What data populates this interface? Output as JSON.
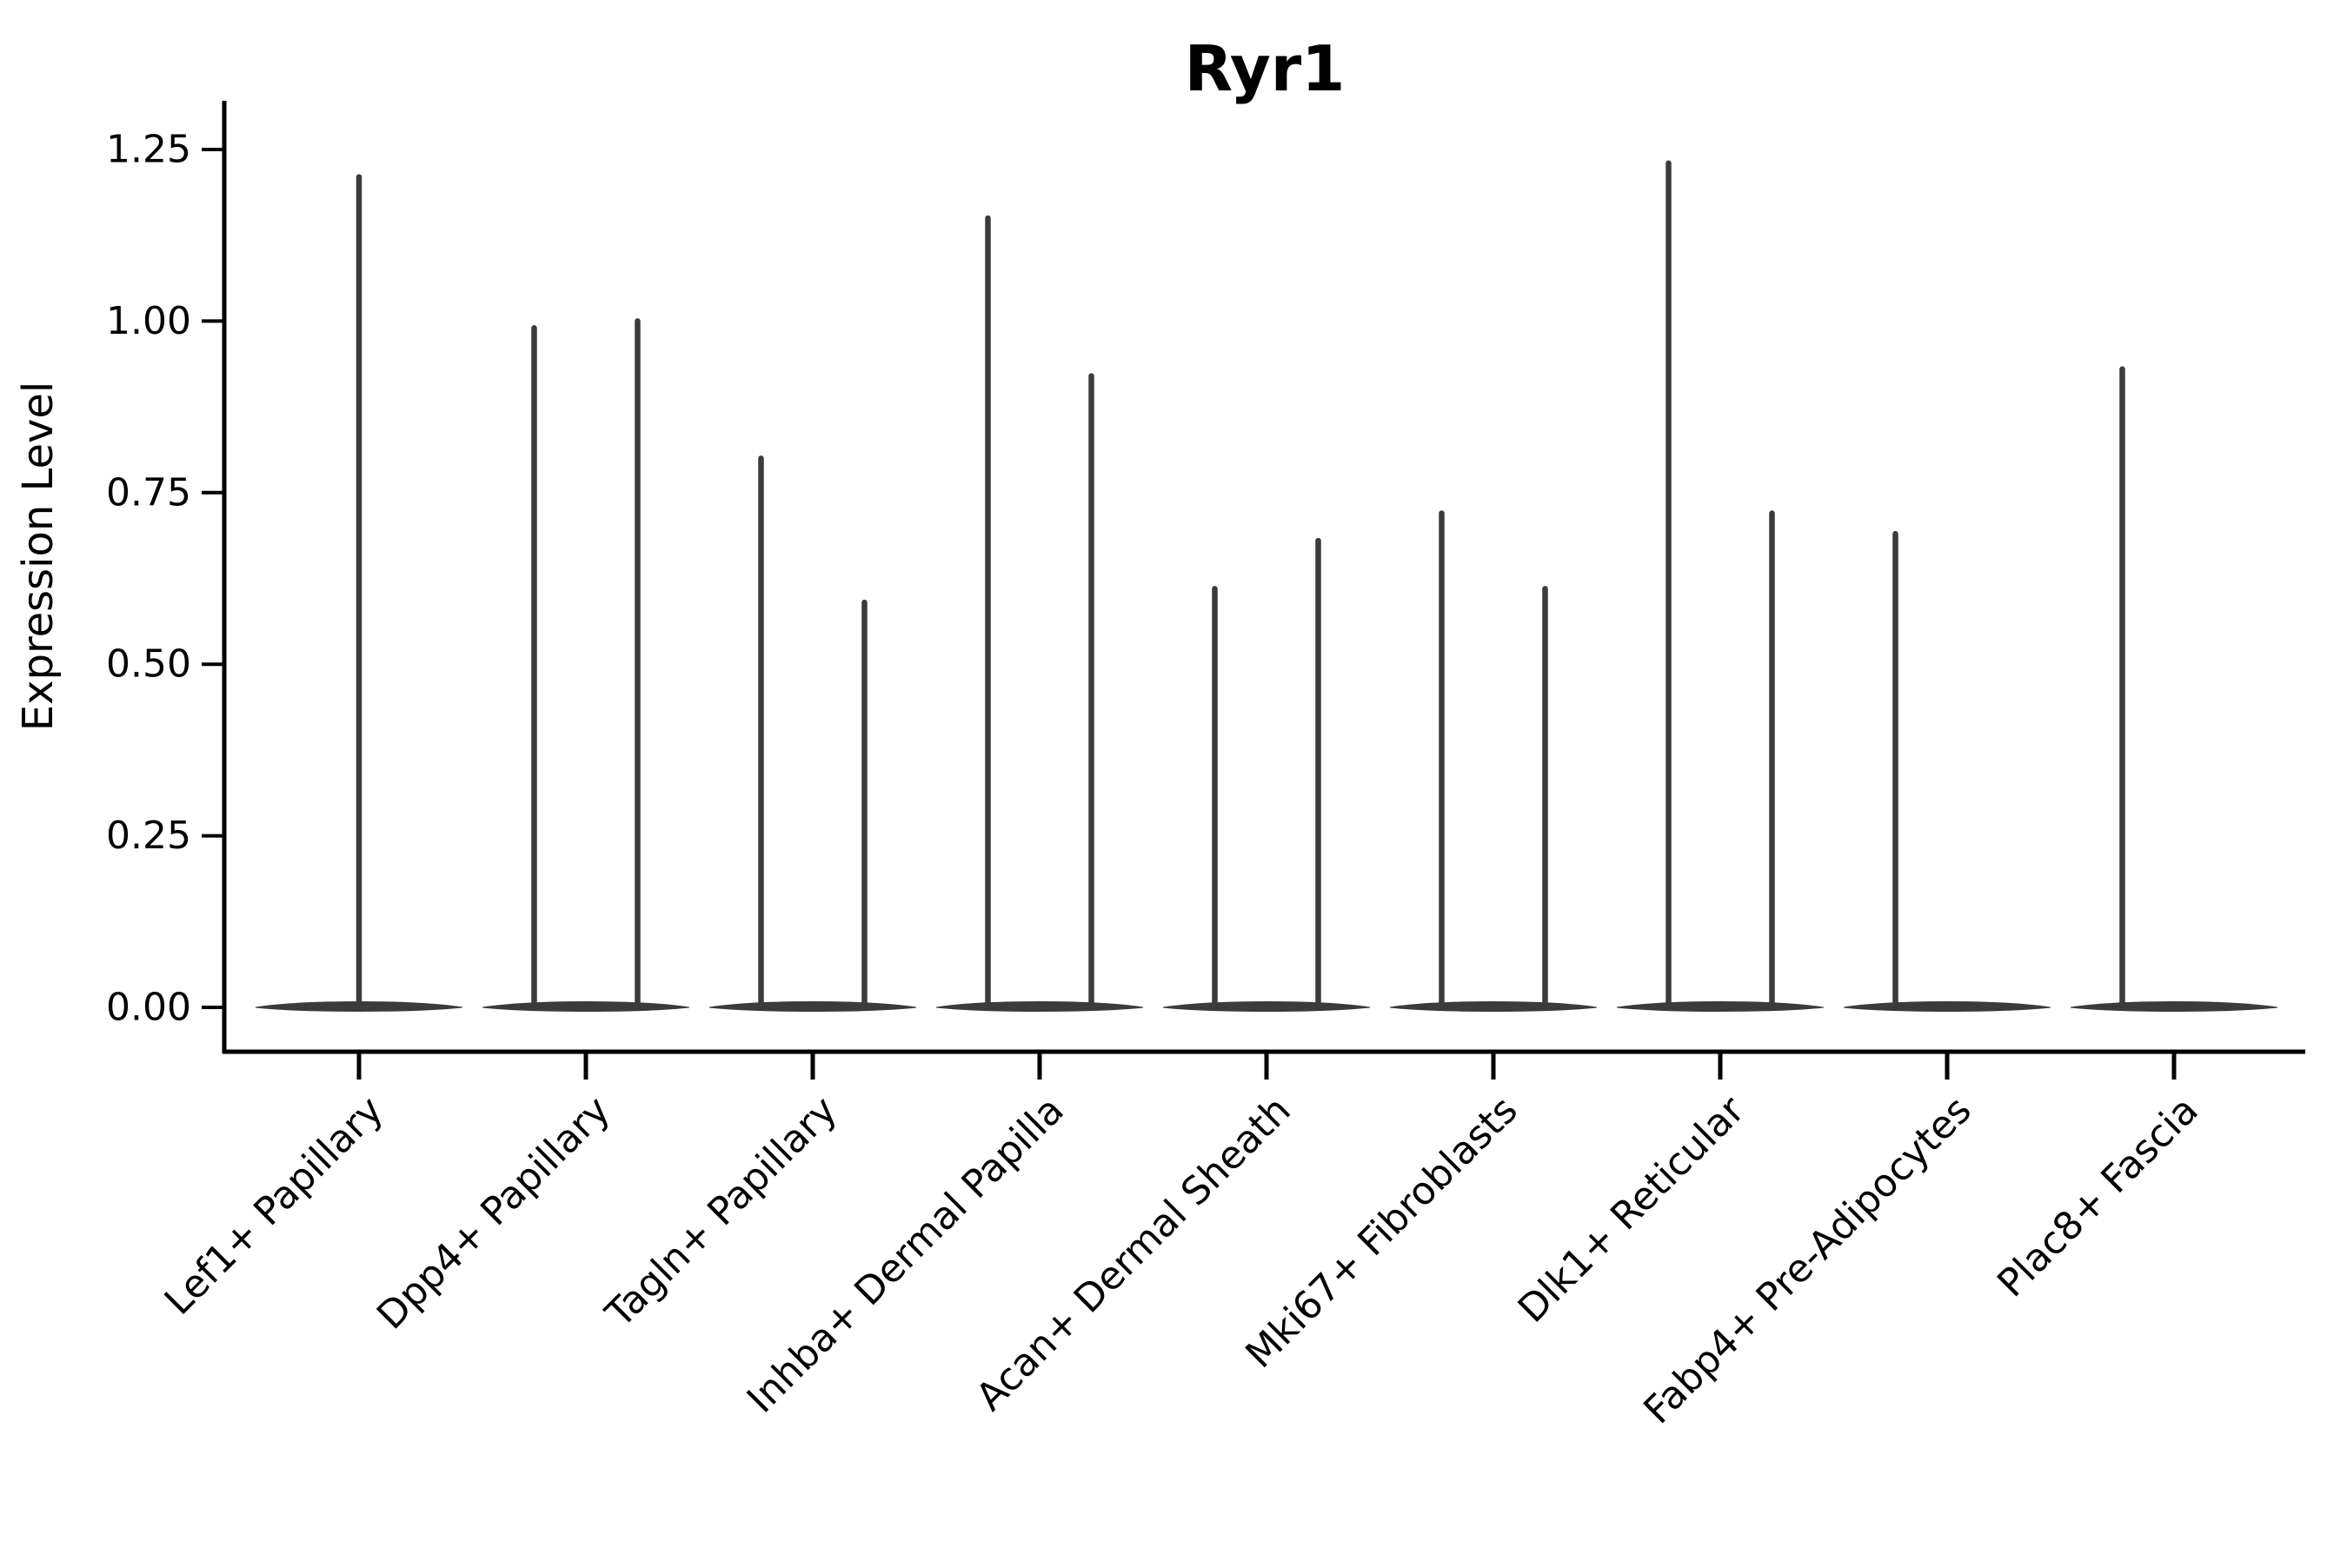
{
  "page": {
    "background": "#ffffff"
  },
  "chart_data": {
    "type": "violin",
    "title": "Ryr1",
    "xlabel": "",
    "ylabel": "Expression Level",
    "ylim": [
      -0.065,
      1.32
    ],
    "grid": false,
    "legend": null,
    "violin_color": "#3b3b3b",
    "axis_color": "#000000",
    "yticks": [
      {
        "value": 0.0,
        "label": "0.00"
      },
      {
        "value": 0.25,
        "label": "0.25"
      },
      {
        "value": 0.5,
        "label": "0.50"
      },
      {
        "value": 0.75,
        "label": "0.75"
      },
      {
        "value": 1.0,
        "label": "1.00"
      },
      {
        "value": 1.25,
        "label": "1.25"
      }
    ],
    "categories": [
      {
        "label": "Lef1+ Papillary",
        "spikes": [
          {
            "position": "center",
            "value": 1.21
          }
        ]
      },
      {
        "label": "Dpp4+ Papillary",
        "spikes": [
          {
            "position": "left",
            "value": 0.99
          },
          {
            "position": "right",
            "value": 1.0
          }
        ]
      },
      {
        "label": "Tagln+ Papillary",
        "spikes": [
          {
            "position": "left",
            "value": 0.8
          },
          {
            "position": "right",
            "value": 0.59
          }
        ]
      },
      {
        "label": "Inhba+ Dermal Papilla",
        "spikes": [
          {
            "position": "left",
            "value": 1.15
          },
          {
            "position": "right",
            "value": 0.92
          }
        ]
      },
      {
        "label": "Acan+ Dermal Sheath",
        "spikes": [
          {
            "position": "left",
            "value": 0.61
          },
          {
            "position": "right",
            "value": 0.68
          }
        ]
      },
      {
        "label": "Mki67+ Fibroblasts",
        "spikes": [
          {
            "position": "left",
            "value": 0.72
          },
          {
            "position": "right",
            "value": 0.61
          }
        ]
      },
      {
        "label": "Dlk1+ Reticular",
        "spikes": [
          {
            "position": "left",
            "value": 1.23
          },
          {
            "position": "right",
            "value": 0.72
          }
        ]
      },
      {
        "label": "Fabp4+ Pre-Adipocytes",
        "spikes": [
          {
            "position": "left",
            "value": 0.69
          }
        ]
      },
      {
        "label": "Plac8+ Fascia",
        "spikes": [
          {
            "position": "left",
            "value": 0.93
          }
        ]
      }
    ]
  }
}
